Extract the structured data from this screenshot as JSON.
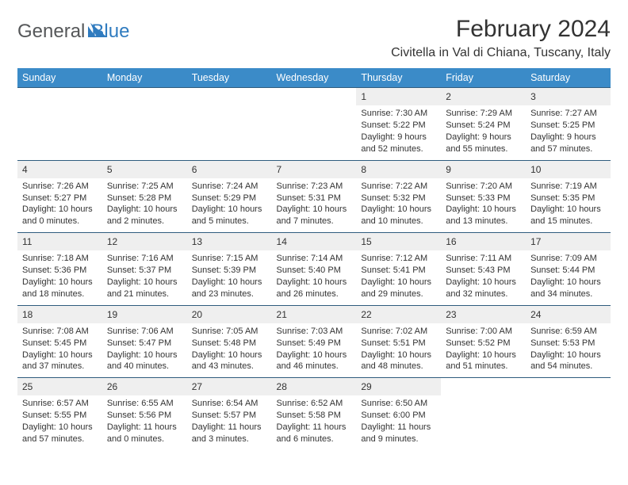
{
  "brand": {
    "name_gray": "General",
    "name_blue": "Blue"
  },
  "title": {
    "month": "February 2024",
    "location": "Civitella in Val di Chiana, Tuscany, Italy"
  },
  "colors": {
    "header_bg": "#3b8bc8",
    "row_border": "#2f5c7e",
    "daynum_bg": "#efefef",
    "text": "#333333",
    "logo_gray": "#555759",
    "logo_blue": "#2f7bbf",
    "background": "#ffffff"
  },
  "day_headers": [
    "Sunday",
    "Monday",
    "Tuesday",
    "Wednesday",
    "Thursday",
    "Friday",
    "Saturday"
  ],
  "weeks": [
    [
      null,
      null,
      null,
      null,
      {
        "n": "1",
        "sr": "Sunrise: 7:30 AM",
        "ss": "Sunset: 5:22 PM",
        "dl": "Daylight: 9 hours and 52 minutes."
      },
      {
        "n": "2",
        "sr": "Sunrise: 7:29 AM",
        "ss": "Sunset: 5:24 PM",
        "dl": "Daylight: 9 hours and 55 minutes."
      },
      {
        "n": "3",
        "sr": "Sunrise: 7:27 AM",
        "ss": "Sunset: 5:25 PM",
        "dl": "Daylight: 9 hours and 57 minutes."
      }
    ],
    [
      {
        "n": "4",
        "sr": "Sunrise: 7:26 AM",
        "ss": "Sunset: 5:27 PM",
        "dl": "Daylight: 10 hours and 0 minutes."
      },
      {
        "n": "5",
        "sr": "Sunrise: 7:25 AM",
        "ss": "Sunset: 5:28 PM",
        "dl": "Daylight: 10 hours and 2 minutes."
      },
      {
        "n": "6",
        "sr": "Sunrise: 7:24 AM",
        "ss": "Sunset: 5:29 PM",
        "dl": "Daylight: 10 hours and 5 minutes."
      },
      {
        "n": "7",
        "sr": "Sunrise: 7:23 AM",
        "ss": "Sunset: 5:31 PM",
        "dl": "Daylight: 10 hours and 7 minutes."
      },
      {
        "n": "8",
        "sr": "Sunrise: 7:22 AM",
        "ss": "Sunset: 5:32 PM",
        "dl": "Daylight: 10 hours and 10 minutes."
      },
      {
        "n": "9",
        "sr": "Sunrise: 7:20 AM",
        "ss": "Sunset: 5:33 PM",
        "dl": "Daylight: 10 hours and 13 minutes."
      },
      {
        "n": "10",
        "sr": "Sunrise: 7:19 AM",
        "ss": "Sunset: 5:35 PM",
        "dl": "Daylight: 10 hours and 15 minutes."
      }
    ],
    [
      {
        "n": "11",
        "sr": "Sunrise: 7:18 AM",
        "ss": "Sunset: 5:36 PM",
        "dl": "Daylight: 10 hours and 18 minutes."
      },
      {
        "n": "12",
        "sr": "Sunrise: 7:16 AM",
        "ss": "Sunset: 5:37 PM",
        "dl": "Daylight: 10 hours and 21 minutes."
      },
      {
        "n": "13",
        "sr": "Sunrise: 7:15 AM",
        "ss": "Sunset: 5:39 PM",
        "dl": "Daylight: 10 hours and 23 minutes."
      },
      {
        "n": "14",
        "sr": "Sunrise: 7:14 AM",
        "ss": "Sunset: 5:40 PM",
        "dl": "Daylight: 10 hours and 26 minutes."
      },
      {
        "n": "15",
        "sr": "Sunrise: 7:12 AM",
        "ss": "Sunset: 5:41 PM",
        "dl": "Daylight: 10 hours and 29 minutes."
      },
      {
        "n": "16",
        "sr": "Sunrise: 7:11 AM",
        "ss": "Sunset: 5:43 PM",
        "dl": "Daylight: 10 hours and 32 minutes."
      },
      {
        "n": "17",
        "sr": "Sunrise: 7:09 AM",
        "ss": "Sunset: 5:44 PM",
        "dl": "Daylight: 10 hours and 34 minutes."
      }
    ],
    [
      {
        "n": "18",
        "sr": "Sunrise: 7:08 AM",
        "ss": "Sunset: 5:45 PM",
        "dl": "Daylight: 10 hours and 37 minutes."
      },
      {
        "n": "19",
        "sr": "Sunrise: 7:06 AM",
        "ss": "Sunset: 5:47 PM",
        "dl": "Daylight: 10 hours and 40 minutes."
      },
      {
        "n": "20",
        "sr": "Sunrise: 7:05 AM",
        "ss": "Sunset: 5:48 PM",
        "dl": "Daylight: 10 hours and 43 minutes."
      },
      {
        "n": "21",
        "sr": "Sunrise: 7:03 AM",
        "ss": "Sunset: 5:49 PM",
        "dl": "Daylight: 10 hours and 46 minutes."
      },
      {
        "n": "22",
        "sr": "Sunrise: 7:02 AM",
        "ss": "Sunset: 5:51 PM",
        "dl": "Daylight: 10 hours and 48 minutes."
      },
      {
        "n": "23",
        "sr": "Sunrise: 7:00 AM",
        "ss": "Sunset: 5:52 PM",
        "dl": "Daylight: 10 hours and 51 minutes."
      },
      {
        "n": "24",
        "sr": "Sunrise: 6:59 AM",
        "ss": "Sunset: 5:53 PM",
        "dl": "Daylight: 10 hours and 54 minutes."
      }
    ],
    [
      {
        "n": "25",
        "sr": "Sunrise: 6:57 AM",
        "ss": "Sunset: 5:55 PM",
        "dl": "Daylight: 10 hours and 57 minutes."
      },
      {
        "n": "26",
        "sr": "Sunrise: 6:55 AM",
        "ss": "Sunset: 5:56 PM",
        "dl": "Daylight: 11 hours and 0 minutes."
      },
      {
        "n": "27",
        "sr": "Sunrise: 6:54 AM",
        "ss": "Sunset: 5:57 PM",
        "dl": "Daylight: 11 hours and 3 minutes."
      },
      {
        "n": "28",
        "sr": "Sunrise: 6:52 AM",
        "ss": "Sunset: 5:58 PM",
        "dl": "Daylight: 11 hours and 6 minutes."
      },
      {
        "n": "29",
        "sr": "Sunrise: 6:50 AM",
        "ss": "Sunset: 6:00 PM",
        "dl": "Daylight: 11 hours and 9 minutes."
      },
      null,
      null
    ]
  ]
}
